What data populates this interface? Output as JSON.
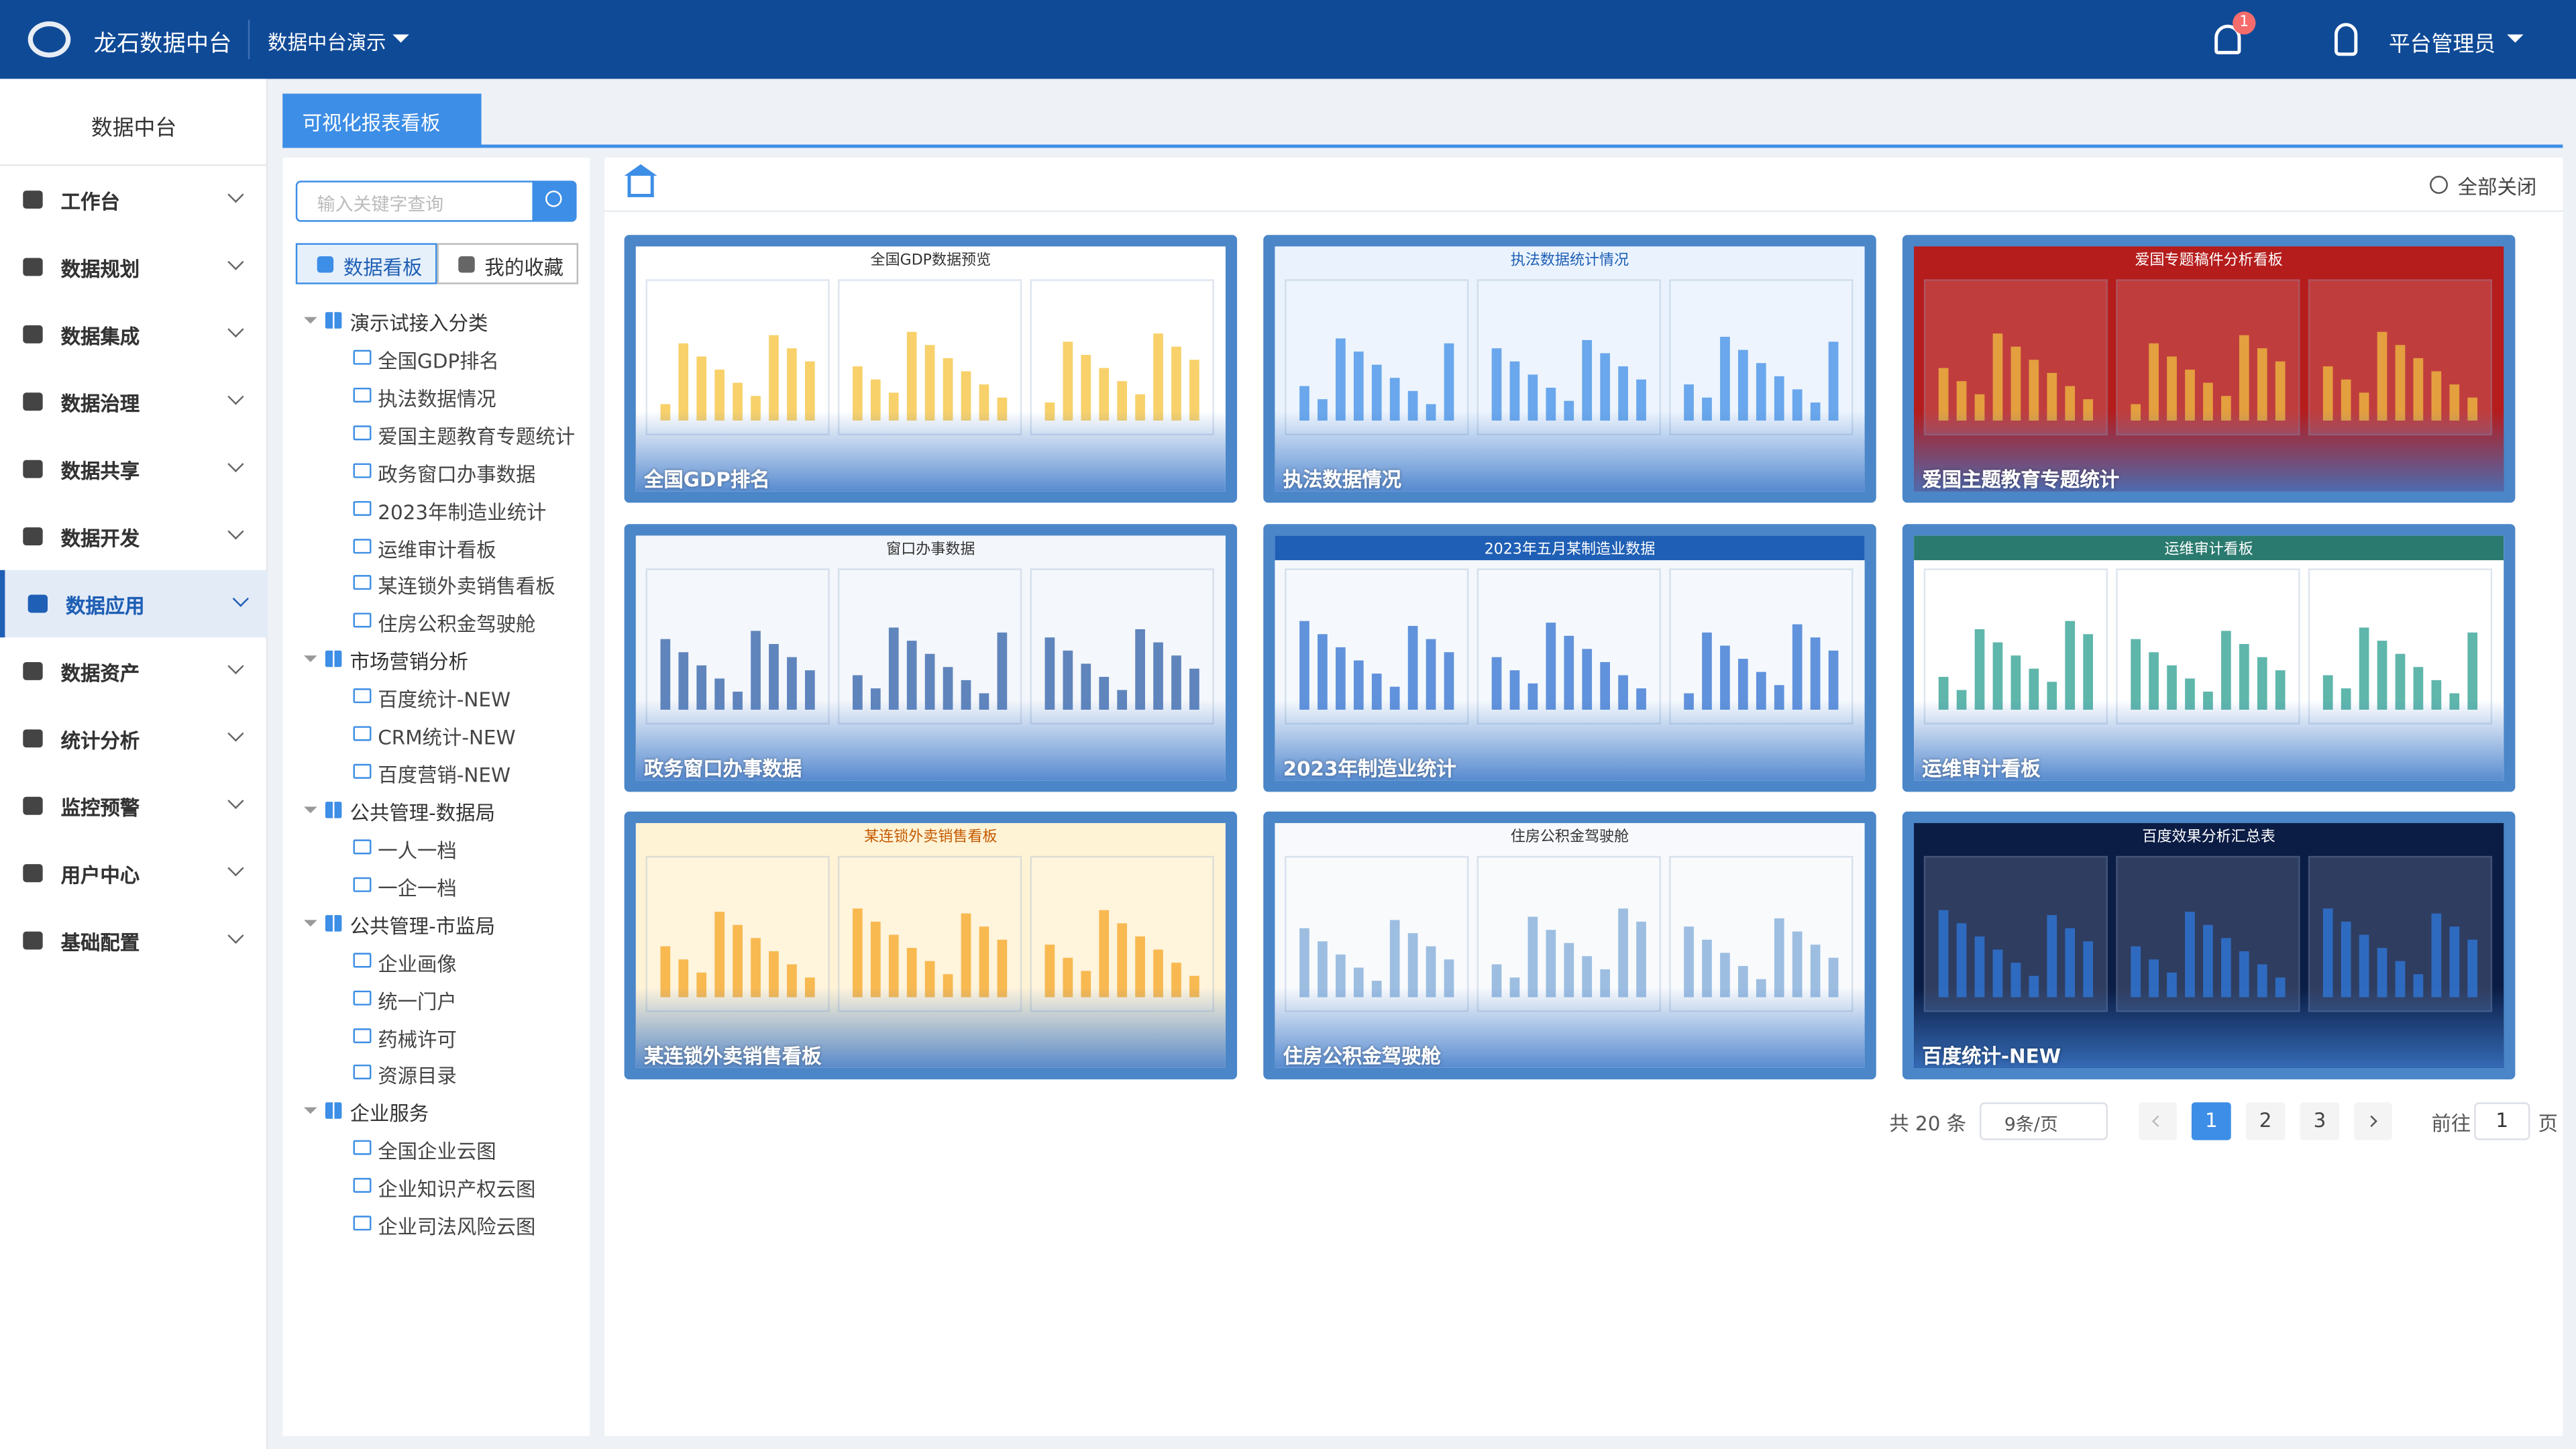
{
  "header": {
    "logo_title": "龙石数据中台",
    "project": "数据中台演示",
    "notification_count": 1,
    "user": "平台管理员"
  },
  "sidebar": {
    "title": "数据中台",
    "menu": [
      "工作台",
      "数据规划",
      "数据集成",
      "数据治理",
      "数据共享",
      "数据开发",
      "数据应用",
      "数据资产",
      "统计分析",
      "监控预警",
      "用户中心",
      "基础配置"
    ],
    "active": 6
  },
  "tabs": [
    "可视化报表看板"
  ],
  "tree_panel": {
    "search_placeholder": "输入关键字查询",
    "buttons": [
      "数据看板",
      "我的收藏"
    ],
    "groups": [
      {
        "label": "演示试接入分类",
        "items": [
          "全国GDP排名",
          "执法数据情况",
          "爱国主题教育专题统计",
          "政务窗口办事数据",
          "2023年制造业统计",
          "运维审计看板",
          "某连锁外卖销售看板",
          "住房公积金驾驶舱"
        ]
      },
      {
        "label": "市场营销分析",
        "items": [
          "百度统计-NEW",
          "CRM统计-NEW",
          "百度营销-NEW"
        ]
      },
      {
        "label": "公共管理-数据局",
        "items": [
          "一人一档",
          "一企一档"
        ]
      },
      {
        "label": "公共管理-市监局",
        "items": [
          "企业画像",
          "统一门户",
          "药械许可",
          "资源目录"
        ]
      },
      {
        "label": "企业服务",
        "items": [
          "全国企业云图",
          "企业知识产权云图",
          "企业司法风险云图"
        ]
      }
    ]
  },
  "toolbar": {
    "close_all": "全部关闭"
  },
  "cards": [
    {
      "title": "全国GDP排名",
      "heading": "全国GDP数据预览"
    },
    {
      "title": "执法数据情况",
      "heading": "执法数据统计情况"
    },
    {
      "title": "爱国主题教育专题统计",
      "heading": "爱国专题稿件分析看板"
    },
    {
      "title": "政务窗口办事数据",
      "heading": "窗口办事数据"
    },
    {
      "title": "2023年制造业统计",
      "heading": "2023年五月某制造业数据"
    },
    {
      "title": "运维审计看板",
      "heading": "运维审计看板"
    },
    {
      "title": "某连锁外卖销售看板",
      "heading": "某连锁外卖销售看板"
    },
    {
      "title": "住房公积金驾驶舱",
      "heading": "住房公积金驾驶舱"
    },
    {
      "title": "百度统计-NEW",
      "heading": "百度效果分析汇总表"
    }
  ],
  "pagination": {
    "total": "共 20 条",
    "page_size": "9条/页",
    "pages": [
      1,
      2,
      3
    ],
    "current": 1,
    "goto_label": "前往",
    "goto_value": 1,
    "page_unit": "页"
  }
}
